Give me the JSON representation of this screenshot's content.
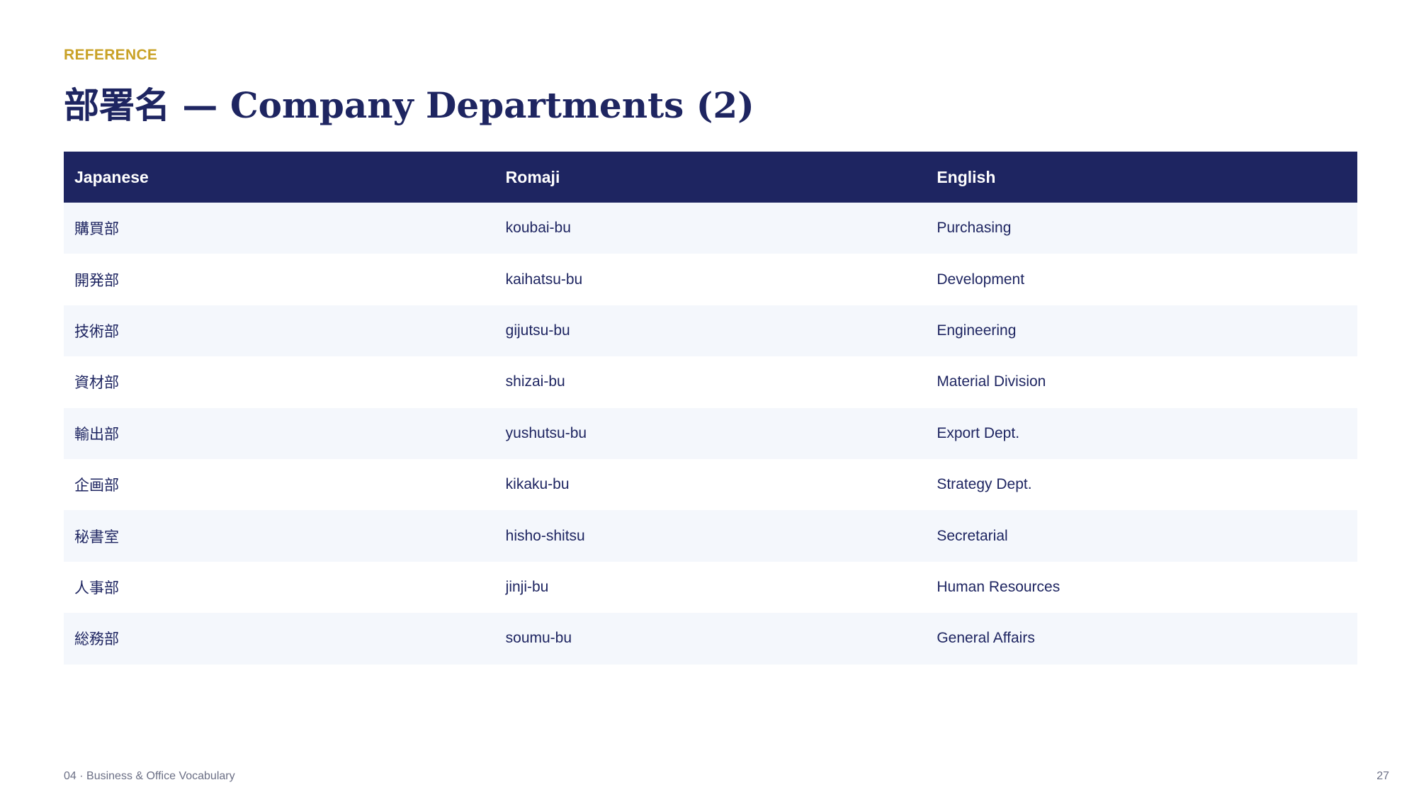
{
  "header": {
    "eyebrow": "REFERENCE",
    "title": "部署名 — Company Departments (2)"
  },
  "table": {
    "columns": [
      "Japanese",
      "Romaji",
      "English"
    ],
    "rows": [
      {
        "japanese": "購買部",
        "romaji": "koubai-bu",
        "english": "Purchasing"
      },
      {
        "japanese": "開発部",
        "romaji": "kaihatsu-bu",
        "english": "Development"
      },
      {
        "japanese": "技術部",
        "romaji": "gijutsu-bu",
        "english": "Engineering"
      },
      {
        "japanese": "資材部",
        "romaji": "shizai-bu",
        "english": "Material Division"
      },
      {
        "japanese": "輸出部",
        "romaji": "yushutsu-bu",
        "english": "Export Dept."
      },
      {
        "japanese": "企画部",
        "romaji": "kikaku-bu",
        "english": "Strategy Dept."
      },
      {
        "japanese": "秘書室",
        "romaji": "hisho-shitsu",
        "english": "Secretarial"
      },
      {
        "japanese": "人事部",
        "romaji": "jinji-bu",
        "english": "Human Resources"
      },
      {
        "japanese": "総務部",
        "romaji": "soumu-bu",
        "english": "General Affairs"
      }
    ]
  },
  "footer": {
    "section": "04 · Business & Office Vocabulary",
    "page_number": "27"
  },
  "colors": {
    "navy": "#1e2561",
    "gold": "#c9a227",
    "row_stripe": "#f4f7fc"
  }
}
